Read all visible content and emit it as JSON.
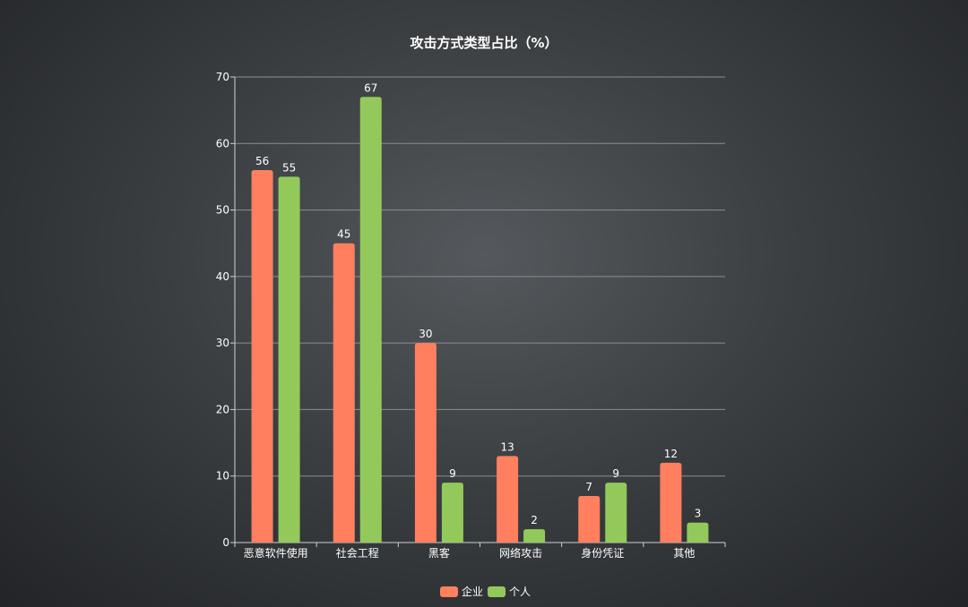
{
  "chart_data": {
    "type": "bar",
    "title": "攻击方式类型占比（%）",
    "categories": [
      "恶意软件使用",
      "社会工程",
      "黑客",
      "网络攻击",
      "身份凭证",
      "其他"
    ],
    "series": [
      {
        "name": "企业",
        "color": "#ff7f5e",
        "values": [
          56,
          45,
          30,
          13,
          7,
          12
        ]
      },
      {
        "name": "个人",
        "color": "#93c95a",
        "values": [
          55,
          67,
          9,
          2,
          9,
          3
        ]
      }
    ],
    "ylim": [
      0,
      70
    ],
    "yticks": [
      0,
      10,
      20,
      30,
      40,
      50,
      60,
      70
    ],
    "xlabel": "",
    "ylabel": "",
    "grid": true,
    "legend_position": "bottom-center"
  }
}
